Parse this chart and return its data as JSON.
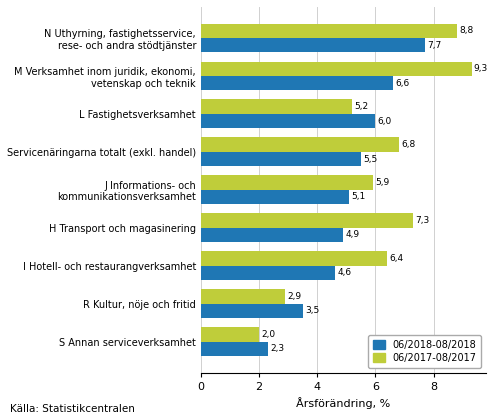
{
  "categories": [
    "N Uthyrning, fastighetsservice,\nrese- och andra stödtjänster",
    "M Verksamhet inom juridik, ekonomi,\nvetenskap och teknik",
    "L Fastighetsverksamhet",
    "Servicenäringarna totalt (exkl. handel)",
    "J Informations- och\nkommunikationsverksamhet",
    "H Transport och magasinering",
    "I Hotell- och restaurangverksamhet",
    "R Kultur, nöje och fritid",
    "S Annan serviceverksamhet"
  ],
  "values_2018": [
    7.7,
    6.6,
    6.0,
    5.5,
    5.1,
    4.9,
    4.6,
    3.5,
    2.3
  ],
  "values_2017": [
    8.8,
    9.3,
    5.2,
    6.8,
    5.9,
    7.3,
    6.4,
    2.9,
    2.0
  ],
  "color_2018": "#1F77B4",
  "color_2017": "#BFCD3A",
  "xlabel": "Årsförändring, %",
  "legend_2018": "06/2018-08/2018",
  "legend_2017": "06/2017-08/2017",
  "source": "Källa: Statistikcentralen",
  "xlim": [
    0,
    9.8
  ],
  "xticks": [
    0,
    2,
    4,
    6,
    8
  ],
  "bar_height": 0.38,
  "figure_bg": "#ffffff"
}
